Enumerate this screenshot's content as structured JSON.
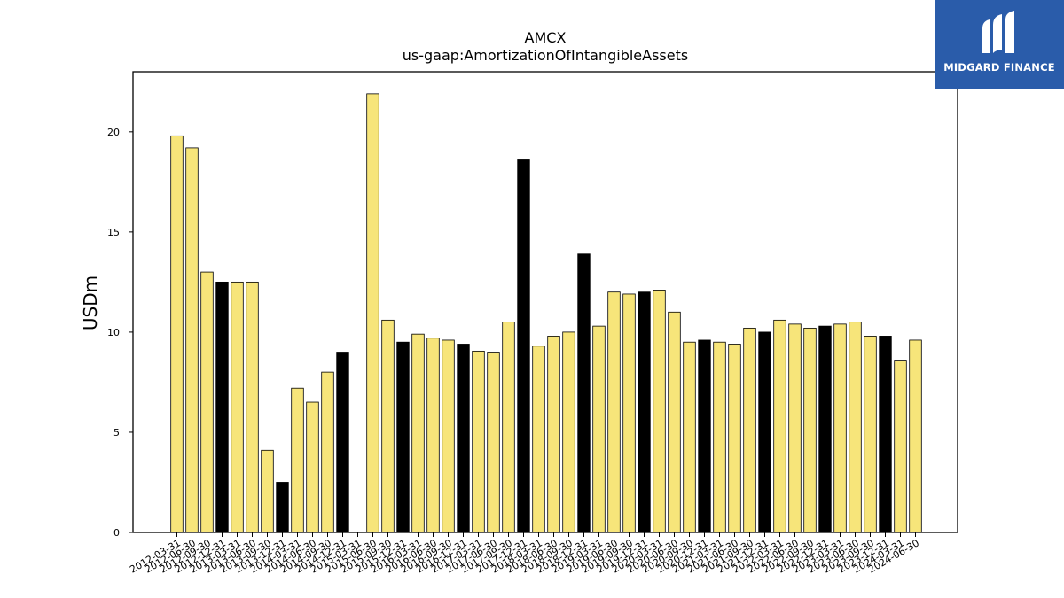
{
  "chart_data": {
    "type": "bar",
    "title": "AMCX",
    "subtitle": "us-gaap:AmortizationOfIntangibleAssets",
    "xlabel": "",
    "ylabel": "USDm",
    "ylim": [
      0,
      23
    ],
    "yticks": [
      "0",
      "5",
      "10",
      "15",
      "20"
    ],
    "ytick_values": [
      0,
      5,
      10,
      15,
      20
    ],
    "grid": false,
    "colors": {
      "bar": "#f7e57a",
      "highlight": "#000000",
      "edge": "#000000"
    },
    "categories": [
      "2012-03-31",
      "2012-06-30",
      "2012-09-30",
      "2012-12-31",
      "2013-03-31",
      "2013-06-30",
      "2013-09-30",
      "2013-12-31",
      "2014-03-31",
      "2014-06-30",
      "2014-09-30",
      "2014-12-31",
      "2015-03-31",
      "2015-06-30",
      "2015-09-30",
      "2015-12-31",
      "2016-03-31",
      "2016-06-30",
      "2016-09-30",
      "2016-12-31",
      "2017-03-31",
      "2017-06-30",
      "2017-09-30",
      "2017-12-31",
      "2018-03-31",
      "2018-06-30",
      "2018-09-30",
      "2018-12-31",
      "2019-03-31",
      "2019-06-30",
      "2019-09-30",
      "2019-12-31",
      "2020-03-31",
      "2020-06-30",
      "2020-09-30",
      "2020-12-31",
      "2021-03-31",
      "2021-06-30",
      "2021-09-30",
      "2021-12-31",
      "2022-03-31",
      "2022-06-30",
      "2022-09-30",
      "2022-12-31",
      "2023-03-31",
      "2023-06-30",
      "2023-09-30",
      "2023-12-31",
      "2024-03-31",
      "2024-06-30"
    ],
    "values": [
      19.8,
      19.2,
      13.0,
      12.5,
      12.5,
      12.5,
      4.1,
      2.5,
      7.2,
      6.5,
      8.0,
      9.0,
      null,
      21.9,
      10.6,
      9.5,
      9.9,
      9.7,
      9.6,
      9.4,
      9.05,
      9.0,
      10.5,
      18.6,
      9.3,
      9.8,
      10.0,
      13.9,
      10.3,
      12.0,
      11.9,
      12.0,
      12.1,
      11.0,
      9.5,
      9.6,
      9.5,
      9.4,
      10.2,
      10.0,
      10.6,
      10.4,
      10.2,
      10.3,
      10.4,
      10.5,
      9.8,
      9.8,
      8.6,
      9.6
    ],
    "highlight": [
      false,
      false,
      false,
      true,
      false,
      false,
      false,
      true,
      false,
      false,
      false,
      true,
      false,
      false,
      false,
      true,
      false,
      false,
      false,
      true,
      false,
      false,
      false,
      true,
      false,
      false,
      false,
      true,
      false,
      false,
      false,
      true,
      false,
      false,
      false,
      true,
      false,
      false,
      false,
      true,
      false,
      false,
      false,
      true,
      false,
      false,
      false,
      true,
      false,
      false
    ]
  },
  "logo": {
    "text": "MIDGARD FINANCE"
  }
}
